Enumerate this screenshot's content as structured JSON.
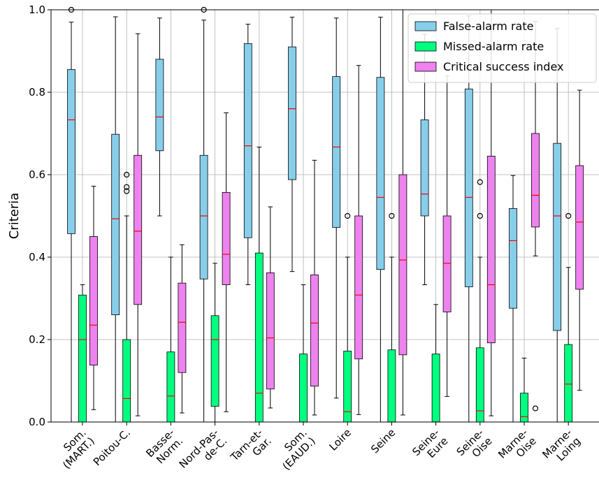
{
  "chart_data": {
    "type": "box",
    "ylabel": "Criteria",
    "ylim": [
      0.0,
      1.0
    ],
    "yticks": [
      "0.0",
      "0.2",
      "0.4",
      "0.6",
      "0.8",
      "1.0"
    ],
    "categories": [
      [
        "Som.",
        "(MART.)"
      ],
      [
        "Poitou-C."
      ],
      [
        "Basse-",
        "Norm."
      ],
      [
        "Nord-Pas-",
        "de-C."
      ],
      [
        "Tarn-et-",
        "Gar."
      ],
      [
        "Som.",
        "(EAUD.)"
      ],
      [
        "Loire"
      ],
      [
        "Seine"
      ],
      [
        "Seine-",
        "Eure"
      ],
      [
        "Seine-",
        "Oise"
      ],
      [
        "Marne-",
        "Oise"
      ],
      [
        "Marne-",
        "Loing"
      ]
    ],
    "grid": "vertical",
    "legend": {
      "position": "top-right",
      "entries": [
        "False-alarm rate",
        "Missed-alarm rate",
        "Critical success index"
      ]
    },
    "median_color": "#ff0000",
    "series": [
      {
        "name": "False-alarm rate",
        "color": "#87ceeb",
        "boxes": [
          {
            "whislo": 0.0,
            "q1": 0.457,
            "med": 0.733,
            "q3": 0.855,
            "whishi": 0.97,
            "fliers": [
              1.0
            ]
          },
          {
            "whislo": 0.0,
            "q1": 0.26,
            "med": 0.493,
            "q3": 0.698,
            "whishi": 0.983,
            "fliers": []
          },
          {
            "whislo": 0.5,
            "q1": 0.658,
            "med": 0.74,
            "q3": 0.88,
            "whishi": 0.98,
            "fliers": []
          },
          {
            "whislo": 0.0,
            "q1": 0.347,
            "med": 0.5,
            "q3": 0.647,
            "whishi": 0.975,
            "fliers": [
              1.0
            ]
          },
          {
            "whislo": 0.333,
            "q1": 0.447,
            "med": 0.67,
            "q3": 0.918,
            "whishi": 0.965,
            "fliers": []
          },
          {
            "whislo": 0.365,
            "q1": 0.588,
            "med": 0.76,
            "q3": 0.91,
            "whishi": 0.982,
            "fliers": []
          },
          {
            "whislo": 0.058,
            "q1": 0.472,
            "med": 0.667,
            "q3": 0.838,
            "whishi": 0.98,
            "fliers": []
          },
          {
            "whislo": 0.0,
            "q1": 0.37,
            "med": 0.545,
            "q3": 0.836,
            "whishi": 0.982,
            "fliers": []
          },
          {
            "whislo": 0.333,
            "q1": 0.5,
            "med": 0.553,
            "q3": 0.733,
            "whishi": 0.94,
            "fliers": []
          },
          {
            "whislo": 0.0,
            "q1": 0.328,
            "med": 0.545,
            "q3": 0.808,
            "whishi": 0.985,
            "fliers": []
          },
          {
            "whislo": 0.0,
            "q1": 0.276,
            "med": 0.44,
            "q3": 0.518,
            "whishi": 0.598,
            "fliers": []
          },
          {
            "whislo": 0.0,
            "q1": 0.222,
            "med": 0.5,
            "q3": 0.676,
            "whishi": 0.955,
            "fliers": []
          }
        ]
      },
      {
        "name": "Missed-alarm rate",
        "color": "#00ff7f",
        "boxes": [
          {
            "whislo": 0.0,
            "q1": 0.0,
            "med": 0.2,
            "q3": 0.308,
            "whishi": 0.333,
            "fliers": []
          },
          {
            "whislo": 0.0,
            "q1": 0.0,
            "med": 0.057,
            "q3": 0.2,
            "whishi": 0.5,
            "fliers": [
              0.56,
              0.57,
              0.6
            ]
          },
          {
            "whislo": 0.0,
            "q1": 0.0,
            "med": 0.063,
            "q3": 0.17,
            "whishi": 0.4,
            "fliers": []
          },
          {
            "whislo": 0.0,
            "q1": 0.038,
            "med": 0.2,
            "q3": 0.258,
            "whishi": 0.385,
            "fliers": []
          },
          {
            "whislo": 0.0,
            "q1": 0.0,
            "med": 0.07,
            "q3": 0.41,
            "whishi": 0.667,
            "fliers": []
          },
          {
            "whislo": 0.0,
            "q1": 0.0,
            "med": 0.0,
            "q3": 0.165,
            "whishi": 0.333,
            "fliers": []
          },
          {
            "whislo": 0.0,
            "q1": 0.0,
            "med": 0.025,
            "q3": 0.172,
            "whishi": 0.4,
            "fliers": [
              0.5
            ]
          },
          {
            "whislo": 0.0,
            "q1": 0.0,
            "med": 0.0,
            "q3": 0.175,
            "whishi": 0.4,
            "fliers": [
              0.5
            ]
          },
          {
            "whislo": 0.0,
            "q1": 0.0,
            "med": 0.0,
            "q3": 0.165,
            "whishi": 0.285,
            "fliers": []
          },
          {
            "whislo": 0.0,
            "q1": 0.0,
            "med": 0.027,
            "q3": 0.18,
            "whishi": 0.4,
            "fliers": [
              0.5,
              0.582
            ]
          },
          {
            "whislo": 0.0,
            "q1": 0.0,
            "med": 0.013,
            "q3": 0.07,
            "whishi": 0.155,
            "fliers": []
          },
          {
            "whislo": 0.0,
            "q1": 0.0,
            "med": 0.092,
            "q3": 0.188,
            "whishi": 0.375,
            "fliers": [
              0.5
            ]
          }
        ]
      },
      {
        "name": "Critical success index",
        "color": "#ee82ee",
        "boxes": [
          {
            "whislo": 0.03,
            "q1": 0.138,
            "med": 0.235,
            "q3": 0.45,
            "whishi": 0.572,
            "fliers": []
          },
          {
            "whislo": 0.015,
            "q1": 0.285,
            "med": 0.463,
            "q3": 0.647,
            "whishi": 0.942,
            "fliers": []
          },
          {
            "whislo": 0.022,
            "q1": 0.12,
            "med": 0.242,
            "q3": 0.337,
            "whishi": 0.43,
            "fliers": []
          },
          {
            "whislo": 0.025,
            "q1": 0.333,
            "med": 0.407,
            "q3": 0.557,
            "whishi": 0.75,
            "fliers": []
          },
          {
            "whislo": 0.034,
            "q1": 0.08,
            "med": 0.204,
            "q3": 0.362,
            "whishi": 0.522,
            "fliers": []
          },
          {
            "whislo": 0.017,
            "q1": 0.087,
            "med": 0.24,
            "q3": 0.357,
            "whishi": 0.635,
            "fliers": []
          },
          {
            "whislo": 0.018,
            "q1": 0.153,
            "med": 0.308,
            "q3": 0.5,
            "whishi": 0.865,
            "fliers": []
          },
          {
            "whislo": 0.017,
            "q1": 0.163,
            "med": 0.393,
            "q3": 0.6,
            "whishi": 1.0,
            "fliers": []
          },
          {
            "whislo": 0.062,
            "q1": 0.267,
            "med": 0.385,
            "q3": 0.5,
            "whishi": 0.84,
            "fliers": []
          },
          {
            "whislo": 0.015,
            "q1": 0.192,
            "med": 0.333,
            "q3": 0.645,
            "whishi": 1.0,
            "fliers": []
          },
          {
            "whislo": 0.403,
            "q1": 0.473,
            "med": 0.55,
            "q3": 0.7,
            "whishi": 0.972,
            "fliers": [
              0.033
            ]
          },
          {
            "whislo": 0.077,
            "q1": 0.322,
            "med": 0.485,
            "q3": 0.622,
            "whishi": 0.805,
            "fliers": []
          }
        ]
      }
    ]
  }
}
